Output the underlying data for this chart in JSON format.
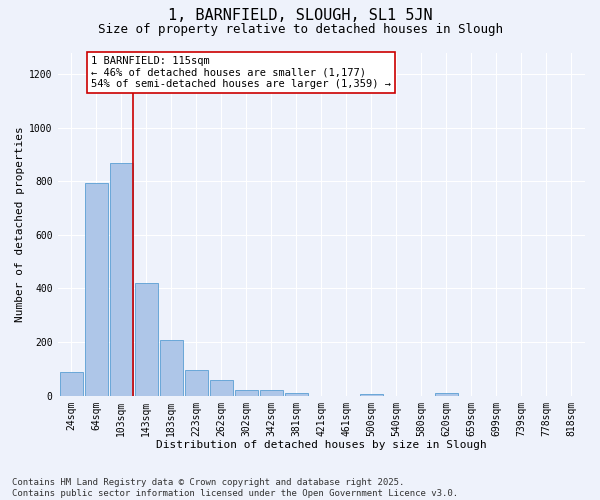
{
  "title": "1, BARNFIELD, SLOUGH, SL1 5JN",
  "subtitle": "Size of property relative to detached houses in Slough",
  "xlabel": "Distribution of detached houses by size in Slough",
  "ylabel": "Number of detached properties",
  "footnote1": "Contains HM Land Registry data © Crown copyright and database right 2025.",
  "footnote2": "Contains public sector information licensed under the Open Government Licence v3.0.",
  "bar_labels": [
    "24sqm",
    "64sqm",
    "103sqm",
    "143sqm",
    "183sqm",
    "223sqm",
    "262sqm",
    "302sqm",
    "342sqm",
    "381sqm",
    "421sqm",
    "461sqm",
    "500sqm",
    "540sqm",
    "580sqm",
    "620sqm",
    "659sqm",
    "699sqm",
    "739sqm",
    "778sqm",
    "818sqm"
  ],
  "bar_values": [
    90,
    795,
    868,
    420,
    208,
    95,
    57,
    20,
    20,
    10,
    0,
    0,
    5,
    0,
    0,
    10,
    0,
    0,
    0,
    0,
    0
  ],
  "bar_color": "#aec6e8",
  "bar_edge_color": "#5a9fd4",
  "ylim": [
    0,
    1280
  ],
  "yticks": [
    0,
    200,
    400,
    600,
    800,
    1000,
    1200
  ],
  "vline_x_idx": 2,
  "vline_color": "#cc0000",
  "annotation_text": "1 BARNFIELD: 115sqm\n← 46% of detached houses are smaller (1,177)\n54% of semi-detached houses are larger (1,359) →",
  "annotation_box_color": "#ffffff",
  "annotation_box_edgecolor": "#cc0000",
  "background_color": "#eef2fb",
  "grid_color": "#ffffff",
  "title_fontsize": 11,
  "subtitle_fontsize": 9,
  "label_fontsize": 8,
  "tick_fontsize": 7,
  "annotation_fontsize": 7.5,
  "footnote_fontsize": 6.5
}
